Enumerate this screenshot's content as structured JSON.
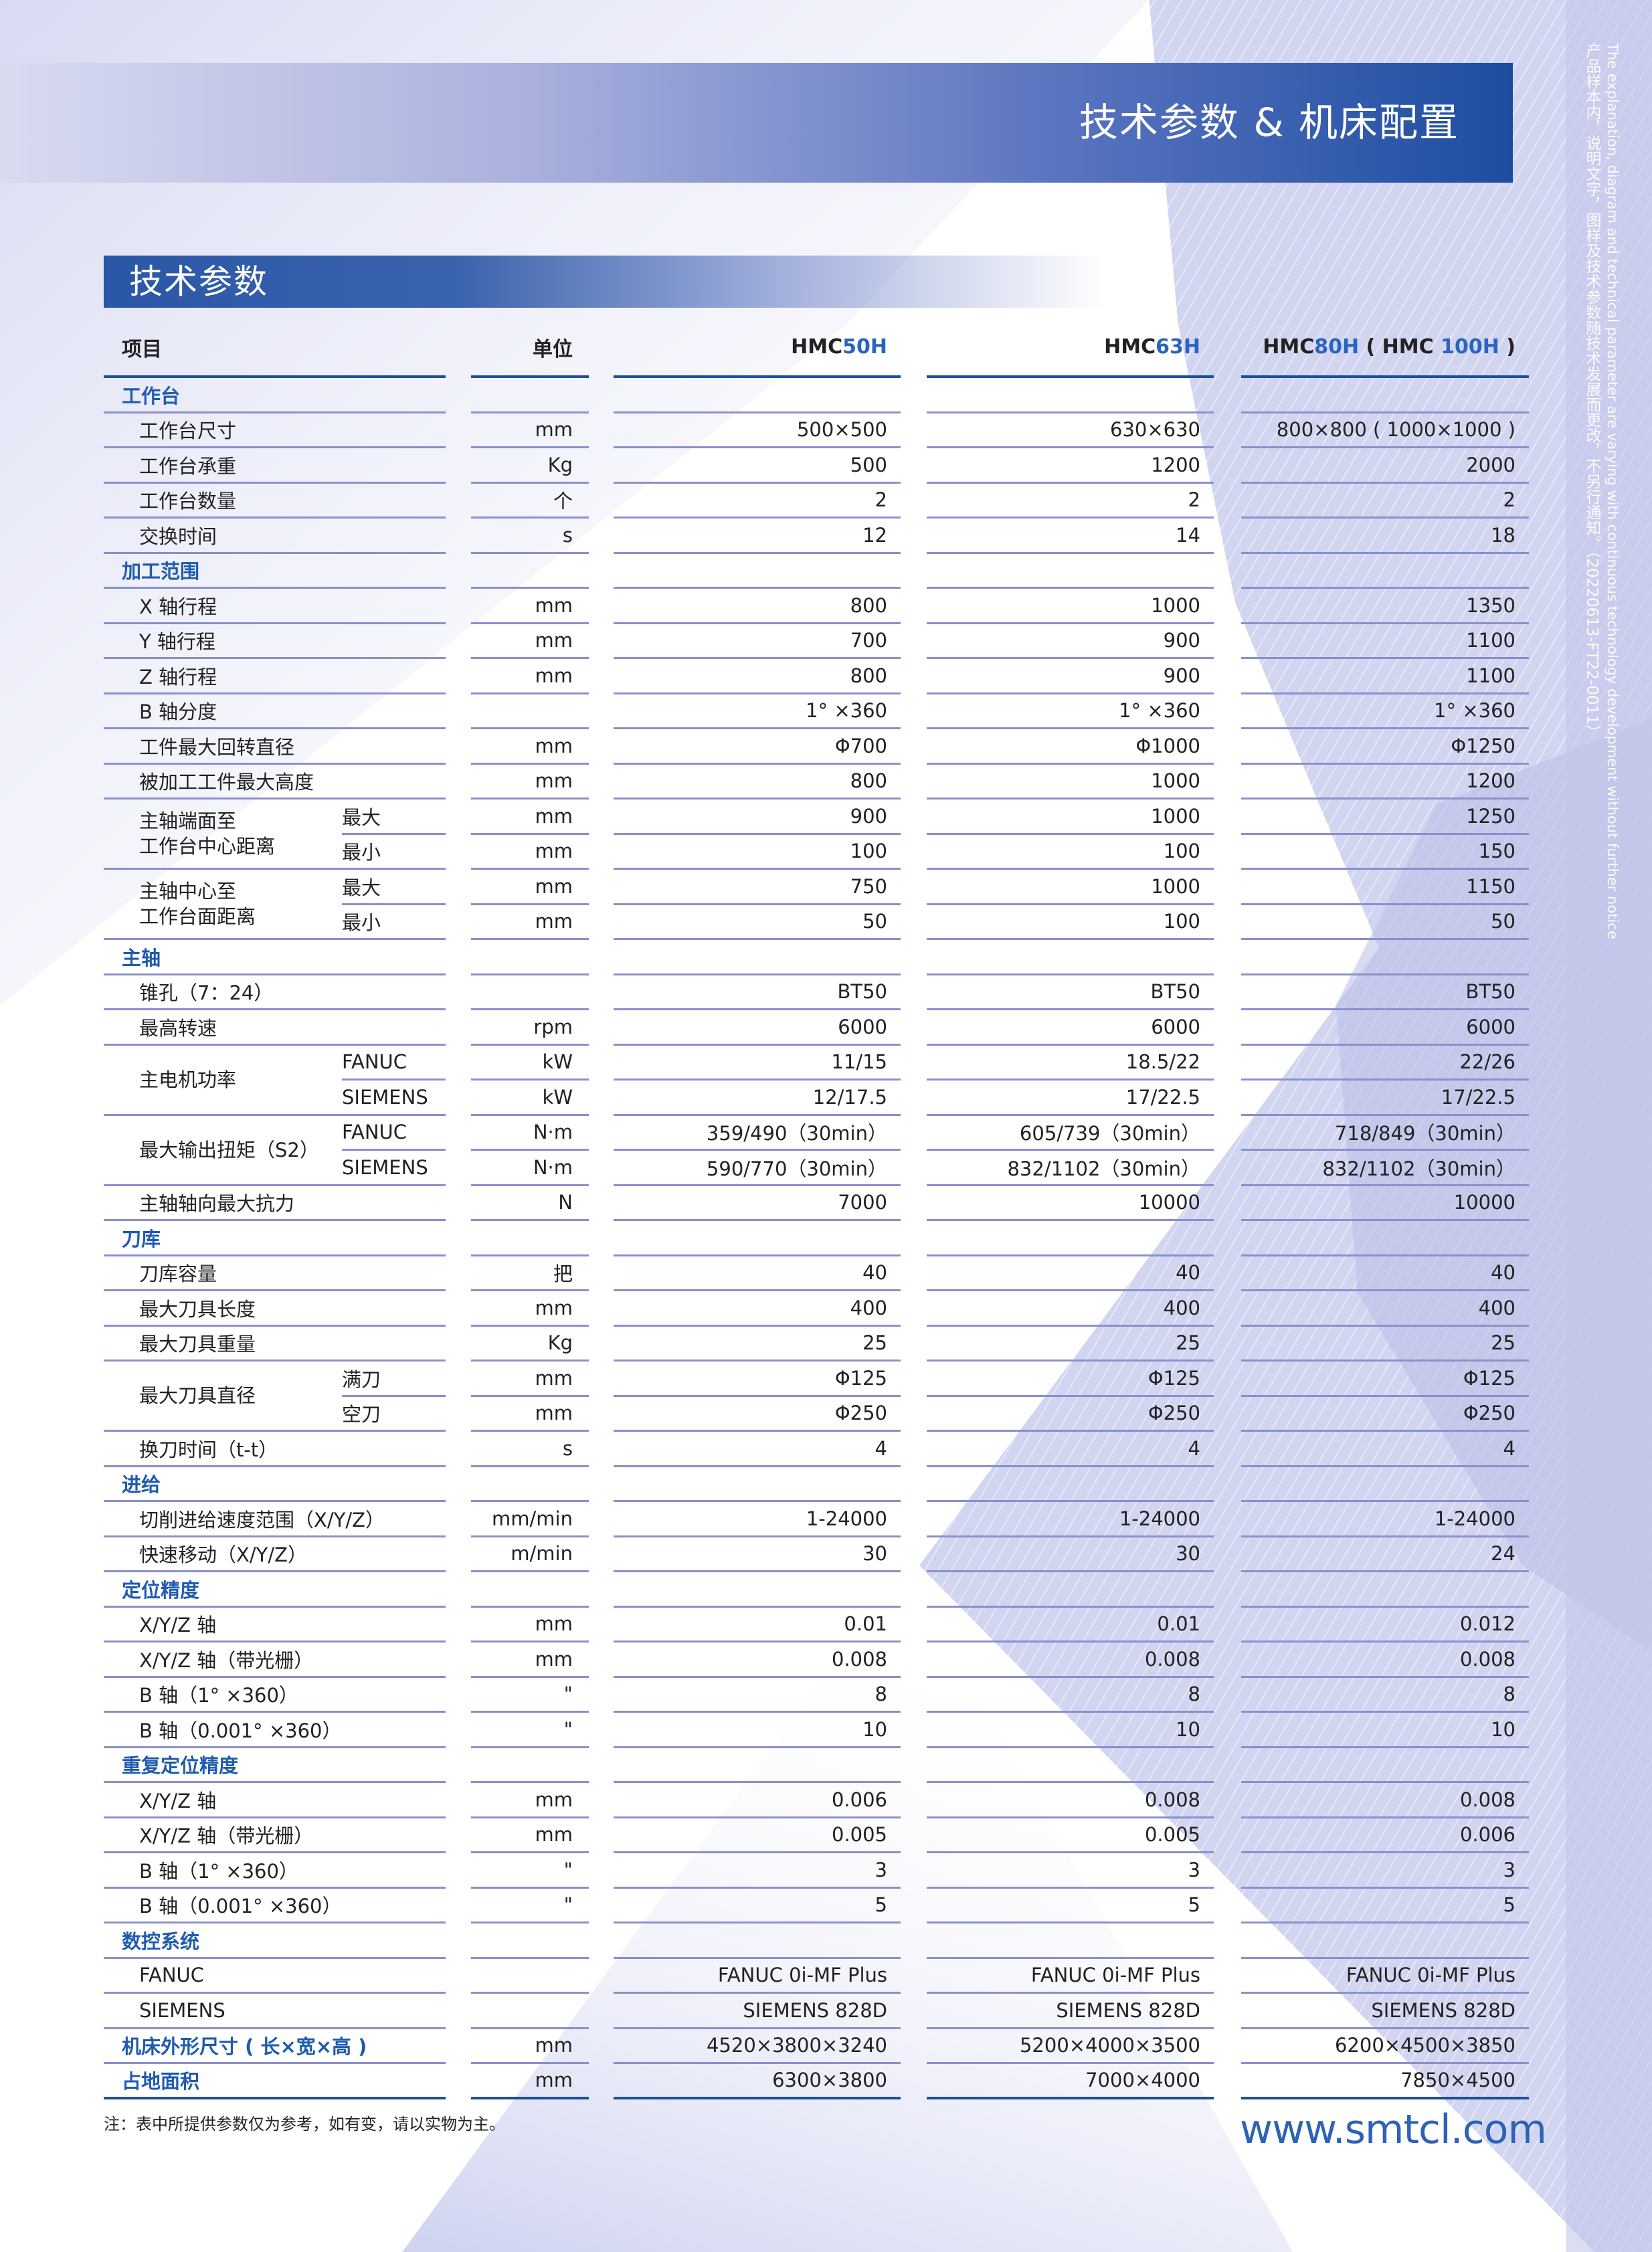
{
  "banner": {
    "title": "技术参数 & 机床配置"
  },
  "section": {
    "title": "技术参数"
  },
  "side_note": {
    "cn": "产品样本内，说明文字，图样及技术参数随技术发展而更改，不另行通知。（20220613-FT22-0011）",
    "en": "The explanation, diagram and technical parameter are varying with continuous technology development without further notice"
  },
  "colors": {
    "brand_blue": "#1f4e9e",
    "accent_blue": "#2a64c0",
    "rule": "#8a90cc"
  },
  "table": {
    "header": {
      "item": "项目",
      "unit": "单位",
      "models": [
        {
          "prefix": "HMC ",
          "model": "50H"
        },
        {
          "prefix": "HMC ",
          "model": "63H"
        },
        {
          "prefix": "HMC ",
          "model": "80H",
          "mid": " ( HMC ",
          "model2": "100H",
          "suffix": " )"
        }
      ]
    },
    "rows": [
      {
        "type": "cat",
        "label": "工作台"
      },
      {
        "label": "工作台尺寸",
        "unit": "mm",
        "values": [
          "500×500",
          "630×630",
          "800×800 ( 1000×1000 )"
        ]
      },
      {
        "label": "工作台承重",
        "unit": "Kg",
        "values": [
          "500",
          "1200",
          "2000"
        ]
      },
      {
        "label": "工作台数量",
        "unit": "个",
        "values": [
          "2",
          "2",
          "2"
        ]
      },
      {
        "label": "交换时间",
        "unit": "s",
        "values": [
          "12",
          "14",
          "18"
        ]
      },
      {
        "type": "cat",
        "label": "加工范围"
      },
      {
        "label": "X 轴行程",
        "unit": "mm",
        "values": [
          "800",
          "1000",
          "1350"
        ]
      },
      {
        "label": "Y 轴行程",
        "unit": "mm",
        "values": [
          "700",
          "900",
          "1100"
        ]
      },
      {
        "label": "Z 轴行程",
        "unit": "mm",
        "values": [
          "800",
          "900",
          "1100"
        ]
      },
      {
        "label": "B 轴分度",
        "unit": "",
        "values": [
          "1° ×360",
          "1° ×360",
          "1° ×360"
        ]
      },
      {
        "label": "工件最大回转直径",
        "unit": "mm",
        "values": [
          "Φ700",
          "Φ1000",
          "Φ1250"
        ]
      },
      {
        "label": "被加工工件最大高度",
        "unit": "mm",
        "values": [
          "800",
          "1000",
          "1200"
        ]
      },
      {
        "type": "group",
        "label": "主轴端面至\n工作台中心距离",
        "rows": [
          {
            "sub": "最大",
            "unit": "mm",
            "values": [
              "900",
              "1000",
              "1250"
            ]
          },
          {
            "sub": "最小",
            "unit": "mm",
            "values": [
              "100",
              "100",
              "150"
            ]
          }
        ]
      },
      {
        "type": "group",
        "label": "主轴中心至\n工作台面距离",
        "rows": [
          {
            "sub": "最大",
            "unit": "mm",
            "values": [
              "750",
              "1000",
              "1150"
            ]
          },
          {
            "sub": "最小",
            "unit": "mm",
            "values": [
              "50",
              "100",
              "50"
            ]
          }
        ]
      },
      {
        "type": "cat",
        "label": "主轴"
      },
      {
        "label": "锥孔（7：24）",
        "unit": "",
        "values": [
          "BT50",
          "BT50",
          "BT50"
        ]
      },
      {
        "label": "最高转速",
        "unit": "rpm",
        "values": [
          "6000",
          "6000",
          "6000"
        ]
      },
      {
        "type": "group",
        "label": "主电机功率",
        "rows": [
          {
            "sub": "FANUC",
            "unit": "kW",
            "values": [
              "11/15",
              "18.5/22",
              "22/26"
            ]
          },
          {
            "sub": "SIEMENS",
            "unit": "kW",
            "values": [
              "12/17.5",
              "17/22.5",
              "17/22.5"
            ]
          }
        ]
      },
      {
        "type": "group",
        "label": "最大输出扭矩（S2）",
        "rows": [
          {
            "sub": "FANUC",
            "unit": "N·m",
            "values": [
              "359/490（30min）",
              "605/739（30min）",
              "718/849（30min）"
            ]
          },
          {
            "sub": "SIEMENS",
            "unit": "N·m",
            "values": [
              "590/770（30min）",
              "832/1102（30min）",
              "832/1102（30min）"
            ]
          }
        ]
      },
      {
        "label": "主轴轴向最大抗力",
        "unit": "N",
        "values": [
          "7000",
          "10000",
          "10000"
        ]
      },
      {
        "type": "cat",
        "label": "刀库"
      },
      {
        "label": "刀库容量",
        "unit": "把",
        "values": [
          "40",
          "40",
          "40"
        ]
      },
      {
        "label": "最大刀具长度",
        "unit": "mm",
        "values": [
          "400",
          "400",
          "400"
        ]
      },
      {
        "label": "最大刀具重量",
        "unit": "Kg",
        "values": [
          "25",
          "25",
          "25"
        ]
      },
      {
        "type": "group",
        "label": "最大刀具直径",
        "rows": [
          {
            "sub": "满刀",
            "unit": "mm",
            "values": [
              "Φ125",
              "Φ125",
              "Φ125"
            ]
          },
          {
            "sub": "空刀",
            "unit": "mm",
            "values": [
              "Φ250",
              "Φ250",
              "Φ250"
            ]
          }
        ]
      },
      {
        "label": "换刀时间（t-t）",
        "unit": "s",
        "values": [
          "4",
          "4",
          "4"
        ]
      },
      {
        "type": "cat",
        "label": "进给"
      },
      {
        "label": "切削进给速度范围（X/Y/Z）",
        "unit": "mm/min",
        "values": [
          "1-24000",
          "1-24000",
          "1-24000"
        ]
      },
      {
        "label": "快速移动（X/Y/Z）",
        "unit": "m/min",
        "values": [
          "30",
          "30",
          "24"
        ]
      },
      {
        "type": "cat",
        "label": "定位精度"
      },
      {
        "label": "X/Y/Z 轴",
        "unit": "mm",
        "values": [
          "0.01",
          "0.01",
          "0.012"
        ]
      },
      {
        "label": "X/Y/Z 轴（带光栅）",
        "unit": "mm",
        "values": [
          "0.008",
          "0.008",
          "0.008"
        ]
      },
      {
        "label": "B 轴（1° ×360）",
        "unit": "\"",
        "values": [
          "8",
          "8",
          "8"
        ]
      },
      {
        "label": "B 轴（0.001° ×360）",
        "unit": "\"",
        "values": [
          "10",
          "10",
          "10"
        ]
      },
      {
        "type": "cat",
        "label": "重复定位精度"
      },
      {
        "label": "X/Y/Z 轴",
        "unit": "mm",
        "values": [
          "0.006",
          "0.008",
          "0.008"
        ]
      },
      {
        "label": "X/Y/Z 轴（带光栅）",
        "unit": "mm",
        "values": [
          "0.005",
          "0.005",
          "0.006"
        ]
      },
      {
        "label": "B 轴（1° ×360）",
        "unit": "\"",
        "values": [
          "3",
          "3",
          "3"
        ]
      },
      {
        "label": "B 轴（0.001° ×360）",
        "unit": "\"",
        "values": [
          "5",
          "5",
          "5"
        ]
      },
      {
        "type": "cat",
        "label": "数控系统"
      },
      {
        "label": "FANUC",
        "unit": "",
        "values": [
          "FANUC 0i-MF Plus",
          "FANUC 0i-MF Plus",
          "FANUC 0i-MF Plus"
        ]
      },
      {
        "label": "SIEMENS",
        "unit": "",
        "values": [
          "SIEMENS 828D",
          "SIEMENS 828D",
          "SIEMENS 828D"
        ]
      },
      {
        "type": "catrow",
        "label": "机床外形尺寸 ( 长×宽×高 )",
        "unit": "mm",
        "values": [
          "4520×3800×3240",
          "5200×4000×3500",
          "6200×4500×3850"
        ]
      },
      {
        "type": "catrow",
        "label": "占地面积",
        "unit": "mm",
        "values": [
          "6300×3800",
          "7000×4000",
          "7850×4500"
        ]
      }
    ]
  },
  "footer": {
    "note": "注：表中所提供参数仅为参考，如有变，请以实物为主。",
    "url": "www.smtcl.com"
  }
}
